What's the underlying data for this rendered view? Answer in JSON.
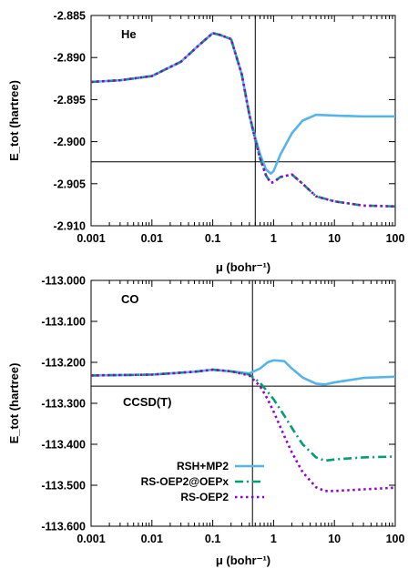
{
  "chart_data": [
    {
      "type": "line",
      "annotation": "He",
      "xlabel": "μ (bohr⁻¹)",
      "ylabel": "E_tot (hartree)",
      "xscale": "log",
      "xlim": [
        0.001,
        100
      ],
      "ylim": [
        -2.91,
        -2.885
      ],
      "xticks": [
        0.001,
        0.01,
        0.1,
        1,
        10,
        100
      ],
      "xtick_labels": [
        "0.001",
        "0.01",
        "0.1",
        "1",
        "10",
        "100"
      ],
      "yticks": [
        -2.885,
        -2.89,
        -2.895,
        -2.9,
        -2.905,
        -2.91
      ],
      "ytick_labels": [
        "-2.885",
        "-2.890",
        "-2.895",
        "-2.900",
        "-2.905",
        "-2.910"
      ],
      "ref_vline_x": 0.5,
      "ref_hline_y": -2.9024,
      "legend": "none",
      "series": [
        {
          "color": "#56b4e9",
          "dash": "solid",
          "points": [
            [
              0.001,
              -2.8929
            ],
            [
              0.003,
              -2.8927
            ],
            [
              0.01,
              -2.8922
            ],
            [
              0.03,
              -2.8905
            ],
            [
              0.06,
              -2.8885
            ],
            [
              0.1,
              -2.8871
            ],
            [
              0.13,
              -2.8873
            ],
            [
              0.2,
              -2.8878
            ],
            [
              0.3,
              -2.892
            ],
            [
              0.4,
              -2.8968
            ],
            [
              0.5,
              -2.8995
            ],
            [
              0.6,
              -2.9015
            ],
            [
              0.75,
              -2.9033
            ],
            [
              0.9,
              -2.9038
            ],
            [
              1.0,
              -2.9035
            ],
            [
              1.3,
              -2.9015
            ],
            [
              2.0,
              -2.899
            ],
            [
              3.0,
              -2.8975
            ],
            [
              5.0,
              -2.8968
            ],
            [
              10,
              -2.8969
            ],
            [
              30,
              -2.897
            ],
            [
              100,
              -2.897
            ]
          ]
        },
        {
          "color": "#009e73",
          "dash": "dashdot",
          "points": [
            [
              0.001,
              -2.8929
            ],
            [
              0.003,
              -2.8927
            ],
            [
              0.01,
              -2.8922
            ],
            [
              0.03,
              -2.8905
            ],
            [
              0.06,
              -2.8885
            ],
            [
              0.1,
              -2.8871
            ],
            [
              0.13,
              -2.8873
            ],
            [
              0.2,
              -2.8878
            ],
            [
              0.3,
              -2.892
            ],
            [
              0.4,
              -2.8968
            ],
            [
              0.5,
              -2.8998
            ],
            [
              0.6,
              -2.902
            ],
            [
              0.75,
              -2.904
            ],
            [
              0.9,
              -2.9049
            ],
            [
              1.0,
              -2.9048
            ],
            [
              1.3,
              -2.9042
            ],
            [
              2.0,
              -2.9039
            ],
            [
              3.0,
              -2.905
            ],
            [
              5.0,
              -2.9065
            ],
            [
              10,
              -2.9071
            ],
            [
              30,
              -2.9076
            ],
            [
              100,
              -2.9077
            ]
          ]
        },
        {
          "color": "#9400d3",
          "dash": "dotted",
          "points": [
            [
              0.001,
              -2.8929
            ],
            [
              0.003,
              -2.8927
            ],
            [
              0.01,
              -2.8922
            ],
            [
              0.03,
              -2.8905
            ],
            [
              0.06,
              -2.8885
            ],
            [
              0.1,
              -2.8871
            ],
            [
              0.13,
              -2.8873
            ],
            [
              0.2,
              -2.8878
            ],
            [
              0.3,
              -2.892
            ],
            [
              0.4,
              -2.8968
            ],
            [
              0.5,
              -2.8998
            ],
            [
              0.6,
              -2.902
            ],
            [
              0.75,
              -2.904
            ],
            [
              0.9,
              -2.9049
            ],
            [
              1.0,
              -2.9048
            ],
            [
              1.3,
              -2.9042
            ],
            [
              2.0,
              -2.9039
            ],
            [
              3.0,
              -2.905
            ],
            [
              5.0,
              -2.9065
            ],
            [
              10,
              -2.9071
            ],
            [
              30,
              -2.9076
            ],
            [
              100,
              -2.9077
            ]
          ]
        }
      ]
    },
    {
      "type": "line",
      "annotation": "CO",
      "hline_label": "CCSD(T)",
      "xlabel": "μ (bohr⁻¹)",
      "ylabel": "E_tot (hartree)",
      "xscale": "log",
      "xlim": [
        0.001,
        100
      ],
      "ylim": [
        -113.6,
        -113.0
      ],
      "xticks": [
        0.001,
        0.01,
        0.1,
        1,
        10,
        100
      ],
      "xtick_labels": [
        "0.001",
        "0.01",
        "0.1",
        "1",
        "10",
        "100"
      ],
      "yticks": [
        -113.0,
        -113.1,
        -113.2,
        -113.3,
        -113.4,
        -113.5,
        -113.6
      ],
      "ytick_labels": [
        "-113.000",
        "-113.100",
        "-113.200",
        "-113.300",
        "-113.400",
        "-113.500",
        "-113.600"
      ],
      "ref_vline_x": 0.45,
      "ref_hline_y": -113.258,
      "legend": "lower-left",
      "series": [
        {
          "name": "RSH+MP2",
          "color": "#56b4e9",
          "dash": "solid",
          "points": [
            [
              0.001,
              -113.232
            ],
            [
              0.01,
              -113.23
            ],
            [
              0.05,
              -113.223
            ],
            [
              0.1,
              -113.218
            ],
            [
              0.2,
              -113.222
            ],
            [
              0.4,
              -113.227
            ],
            [
              0.6,
              -113.215
            ],
            [
              0.8,
              -113.2
            ],
            [
              1.0,
              -113.195
            ],
            [
              1.5,
              -113.197
            ],
            [
              2.0,
              -113.215
            ],
            [
              3.0,
              -113.237
            ],
            [
              5.0,
              -113.252
            ],
            [
              7.0,
              -113.254
            ],
            [
              10,
              -113.249
            ],
            [
              30,
              -113.238
            ],
            [
              100,
              -113.235
            ]
          ]
        },
        {
          "name": "RS-OEP2@OEPx",
          "color": "#009e73",
          "dash": "dashdot",
          "points": [
            [
              0.001,
              -113.232
            ],
            [
              0.01,
              -113.23
            ],
            [
              0.05,
              -113.223
            ],
            [
              0.1,
              -113.218
            ],
            [
              0.2,
              -113.222
            ],
            [
              0.4,
              -113.23
            ],
            [
              0.6,
              -113.25
            ],
            [
              0.8,
              -113.272
            ],
            [
              1.0,
              -113.29
            ],
            [
              1.5,
              -113.33
            ],
            [
              2.0,
              -113.36
            ],
            [
              3.0,
              -113.4
            ],
            [
              5.0,
              -113.432
            ],
            [
              7.0,
              -113.44
            ],
            [
              10,
              -113.437
            ],
            [
              30,
              -113.432
            ],
            [
              100,
              -113.43
            ]
          ]
        },
        {
          "name": "RS-OEP2",
          "color": "#9400d3",
          "dash": "dotted",
          "points": [
            [
              0.001,
              -113.232
            ],
            [
              0.01,
              -113.23
            ],
            [
              0.05,
              -113.223
            ],
            [
              0.1,
              -113.218
            ],
            [
              0.2,
              -113.222
            ],
            [
              0.4,
              -113.232
            ],
            [
              0.6,
              -113.258
            ],
            [
              0.8,
              -113.29
            ],
            [
              1.0,
              -113.32
            ],
            [
              1.5,
              -113.38
            ],
            [
              2.0,
              -113.42
            ],
            [
              3.0,
              -113.468
            ],
            [
              5.0,
              -113.505
            ],
            [
              7.0,
              -113.514
            ],
            [
              10,
              -113.514
            ],
            [
              30,
              -113.51
            ],
            [
              100,
              -113.506
            ]
          ]
        }
      ]
    }
  ]
}
